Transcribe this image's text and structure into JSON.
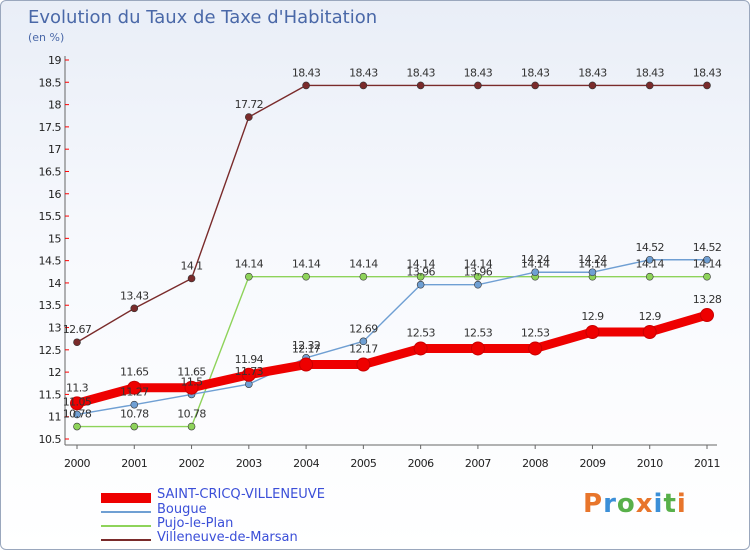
{
  "chart_data": {
    "type": "line",
    "title": "Evolution du Taux de Taxe d'Habitation",
    "subtitle": "(en %)",
    "x": [
      "2000",
      "2001",
      "2002",
      "2003",
      "2004",
      "2005",
      "2006",
      "2007",
      "2008",
      "2009",
      "2010",
      "2011"
    ],
    "ylim": [
      10.5,
      19
    ],
    "yticks": [
      "10.5",
      "11",
      "11.5",
      "12",
      "12.5",
      "13",
      "13.5",
      "14",
      "14.5",
      "15",
      "15.5",
      "16",
      "16.5",
      "17",
      "17.5",
      "18",
      "18.5",
      "19"
    ],
    "grid": false,
    "legend_position": "bottom-left",
    "series": [
      {
        "name": "SAINT-CRICQ-VILLENEUVE",
        "color": "#ee0000",
        "values": [
          11.3,
          11.65,
          11.65,
          11.94,
          12.17,
          12.17,
          12.53,
          12.53,
          12.53,
          12.9,
          12.9,
          13.28
        ],
        "labels": [
          "11.3",
          "11.65",
          "11.65",
          "11.94",
          "12.17",
          "12.17",
          "12.53",
          "12.53",
          "12.53",
          "12.9",
          "12.9",
          "13.28"
        ]
      },
      {
        "name": "Bougue",
        "color": "#6f9fd3",
        "values": [
          11.05,
          11.27,
          11.5,
          11.73,
          12.32,
          12.69,
          13.96,
          13.96,
          14.24,
          14.24,
          14.52,
          14.52
        ],
        "labels": [
          "11.05",
          "11.27",
          "11.5",
          "11.73",
          "12.32",
          "12.69",
          "13.96",
          "13.96",
          "14.24",
          "14.24",
          "14.52",
          "14.52"
        ]
      },
      {
        "name": "Pujo-le-Plan",
        "color": "#8ed35a",
        "values": [
          10.78,
          10.78,
          10.78,
          14.14,
          14.14,
          14.14,
          14.14,
          14.14,
          14.14,
          14.14,
          14.14,
          14.14
        ],
        "labels": [
          "10.78",
          "10.78",
          "10.78",
          "14.14",
          "14.14",
          "14.14",
          "14.14",
          "14.14",
          "14.14",
          "14.14",
          "14.14",
          "14.14"
        ]
      },
      {
        "name": "Villeneuve-de-Marsan",
        "color": "#7a2b2b",
        "values": [
          12.67,
          13.43,
          14.1,
          17.72,
          18.43,
          18.43,
          18.43,
          18.43,
          18.43,
          18.43,
          18.43,
          18.43
        ],
        "labels": [
          "12.67",
          "13.43",
          "14.1",
          "17.72",
          "18.43",
          "18.43",
          "18.43",
          "18.43",
          "18.43",
          "18.43",
          "18.43",
          "18.43"
        ]
      }
    ]
  },
  "logo": {
    "text": "Proxiti",
    "colors": [
      "#e8752b",
      "#3b8fd8",
      "#58b04a",
      "#e8752b",
      "#3b8fd8",
      "#58b04a",
      "#e8752b"
    ]
  }
}
